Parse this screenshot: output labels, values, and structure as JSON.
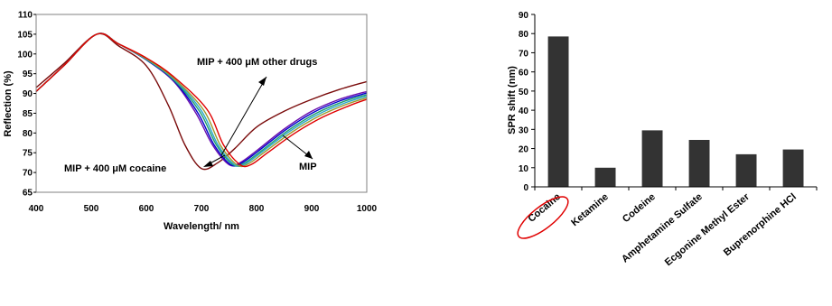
{
  "chart_data": [
    {
      "type": "line",
      "title": "",
      "xlabel": "Wavelength/ nm",
      "ylabel": "Reflection (%)",
      "xlim": [
        400,
        1000
      ],
      "ylim": [
        65,
        110
      ],
      "xticks": [
        "400",
        "500",
        "600",
        "700",
        "800",
        "900",
        "1000"
      ],
      "yticks": [
        "65",
        "70",
        "75",
        "80",
        "85",
        "90",
        "95",
        "100",
        "105",
        "110"
      ],
      "grid": false,
      "annotations": [
        {
          "text": "MIP + 400 μM other drugs"
        },
        {
          "text": "MIP + 400 μM cocaine"
        },
        {
          "text": "MIP"
        }
      ],
      "series": [
        {
          "color": "#7a0b0b",
          "x": [
            400,
            450,
            510,
            550,
            600,
            640,
            670,
            700,
            730,
            760,
            800,
            850,
            900,
            950,
            1000
          ],
          "y": [
            91.5,
            97.5,
            105,
            102,
            97,
            87,
            77,
            71,
            72.5,
            76,
            81.5,
            85.5,
            88.5,
            91,
            93
          ]
        },
        {
          "color": "#6a0dad",
          "x": [
            400,
            450,
            510,
            550,
            600,
            650,
            690,
            720,
            750,
            770,
            800,
            850,
            900,
            950,
            1000
          ],
          "y": [
            90.5,
            97,
            105,
            102.5,
            98.5,
            93,
            85,
            77,
            72,
            72.5,
            75.5,
            81,
            85.5,
            88.5,
            90.5
          ]
        },
        {
          "color": "#0000cc",
          "x": [
            400,
            450,
            510,
            550,
            600,
            650,
            693,
            723,
            753,
            773,
            803,
            853,
            903,
            953,
            1000
          ],
          "y": [
            90.5,
            97,
            105,
            102.5,
            98.5,
            93.2,
            85.2,
            77,
            72,
            72.4,
            75.4,
            80.8,
            85.2,
            88.2,
            90.1
          ]
        },
        {
          "color": "#1f9e6e",
          "x": [
            400,
            450,
            510,
            550,
            600,
            650,
            697,
            727,
            757,
            777,
            807,
            857,
            907,
            957,
            1000
          ],
          "y": [
            90.5,
            97,
            105,
            102.5,
            98.6,
            93.4,
            85.4,
            77,
            72,
            72.3,
            75.3,
            80.6,
            84.9,
            87.9,
            89.7
          ]
        },
        {
          "color": "#2aa7c9",
          "x": [
            400,
            450,
            510,
            550,
            600,
            650,
            700,
            730,
            760,
            780,
            810,
            860,
            910,
            960,
            1000
          ],
          "y": [
            90.5,
            97,
            105,
            102.5,
            98.7,
            93.6,
            85.6,
            77,
            72,
            72.2,
            75.2,
            80.4,
            84.6,
            87.6,
            89.3
          ]
        },
        {
          "color": "#9a9a2e",
          "x": [
            400,
            450,
            510,
            550,
            600,
            650,
            704,
            734,
            764,
            784,
            814,
            864,
            914,
            964,
            1000
          ],
          "y": [
            90.5,
            97,
            105,
            102.5,
            98.8,
            93.8,
            85.8,
            77,
            72,
            72.1,
            75.1,
            80.2,
            84.3,
            87.3,
            88.9
          ]
        },
        {
          "color": "#e00000",
          "x": [
            400,
            450,
            510,
            550,
            600,
            650,
            710,
            740,
            770,
            790,
            820,
            870,
            920,
            970,
            1000
          ],
          "y": [
            90.5,
            97,
            105,
            102.5,
            99,
            94.2,
            86,
            77,
            72,
            72,
            75,
            80,
            84,
            87,
            88.5
          ]
        }
      ]
    },
    {
      "type": "bar",
      "title": "",
      "xlabel": "",
      "ylabel": "SPR shift (nm)",
      "ylim": [
        0,
        90
      ],
      "yticks": [
        "0",
        "10",
        "20",
        "30",
        "40",
        "50",
        "60",
        "70",
        "80",
        "90"
      ],
      "grid": false,
      "bar_color": "#333333",
      "highlight_color": "#e00000",
      "highlighted_category": "Cocaine",
      "categories": [
        "Cocaine",
        "Ketamine",
        "Codeine",
        "Amphetamine Sulfate",
        "Ecgonine Methyl Ester",
        "Buprenorphine HCl"
      ],
      "values": [
        78.5,
        10,
        29.5,
        24.5,
        17,
        19.5
      ]
    }
  ]
}
